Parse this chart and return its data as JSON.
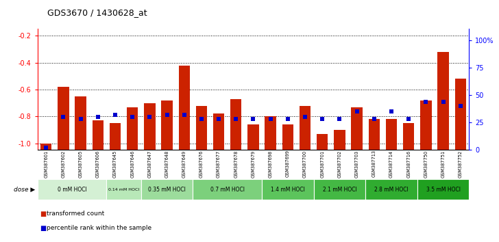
{
  "title": "GDS3670 / 1430628_at",
  "samples": [
    "GSM387601",
    "GSM387602",
    "GSM387605",
    "GSM387606",
    "GSM387645",
    "GSM387646",
    "GSM387647",
    "GSM387648",
    "GSM387649",
    "GSM387676",
    "GSM387677",
    "GSM387678",
    "GSM387679",
    "GSM387698",
    "GSM387699",
    "GSM387700",
    "GSM387701",
    "GSM387702",
    "GSM387703",
    "GSM387713",
    "GSM387714",
    "GSM387716",
    "GSM387750",
    "GSM387751",
    "GSM387752"
  ],
  "transformed_count": [
    -1.0,
    -0.58,
    -0.65,
    -0.83,
    -0.85,
    -0.73,
    -0.7,
    -0.68,
    -0.42,
    -0.72,
    -0.78,
    -0.67,
    -0.86,
    -0.8,
    -0.86,
    -0.72,
    -0.93,
    -0.9,
    -0.73,
    -0.82,
    -0.82,
    -0.85,
    -0.68,
    -0.32,
    -0.52
  ],
  "percentile_rank": [
    2,
    30,
    28,
    30,
    32,
    30,
    30,
    32,
    32,
    28,
    28,
    28,
    28,
    28,
    28,
    30,
    28,
    28,
    35,
    28,
    35,
    28,
    44,
    44,
    40
  ],
  "dose_groups": [
    {
      "label": "0 mM HOCl",
      "start": 0,
      "end": 4,
      "color": "#d4f0d4"
    },
    {
      "label": "0.14 mM HOCl",
      "start": 4,
      "end": 6,
      "color": "#b8e8b8"
    },
    {
      "label": "0.35 mM HOCl",
      "start": 6,
      "end": 9,
      "color": "#9cdc9c"
    },
    {
      "label": "0.7 mM HOCl",
      "start": 9,
      "end": 13,
      "color": "#7cd07c"
    },
    {
      "label": "1.4 mM HOCl",
      "start": 13,
      "end": 16,
      "color": "#5cc45c"
    },
    {
      "label": "2.1 mM HOCl",
      "start": 16,
      "end": 19,
      "color": "#44b844"
    },
    {
      "label": "2.8 mM HOCl",
      "start": 19,
      "end": 22,
      "color": "#30ac30"
    },
    {
      "label": "3.5 mM HOCl",
      "start": 22,
      "end": 25,
      "color": "#20a020"
    }
  ],
  "ylim_left": [
    -1.05,
    -0.15
  ],
  "ylim_right": [
    0,
    110
  ],
  "yticks_left": [
    -1.0,
    -0.8,
    -0.6,
    -0.4,
    -0.2
  ],
  "yticks_right": [
    0,
    25,
    50,
    75,
    100
  ],
  "bar_color": "#cc2200",
  "dot_color": "#0000cc",
  "legend_items": [
    "transformed count",
    "percentile rank within the sample"
  ],
  "legend_colors": [
    "#cc2200",
    "#0000cc"
  ]
}
